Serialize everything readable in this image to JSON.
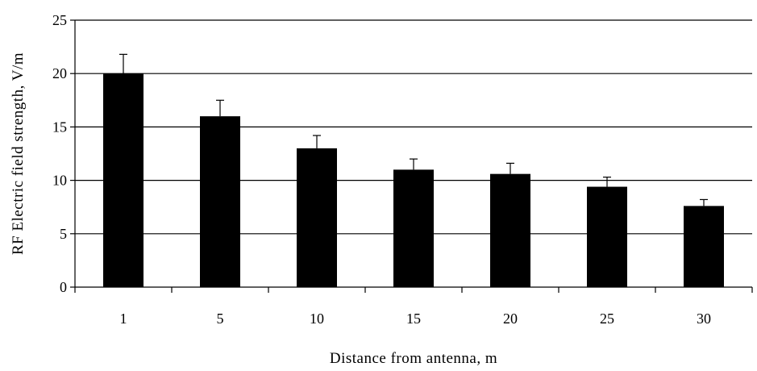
{
  "chart_data": {
    "type": "bar",
    "title": "",
    "xlabel": "Distance  from  antenna,  m",
    "ylabel": "RF Electric  field strength,  V/m",
    "categories": [
      "1",
      "5",
      "10",
      "15",
      "20",
      "25",
      "30"
    ],
    "values": [
      20.0,
      16.0,
      13.0,
      11.0,
      10.6,
      9.4,
      7.6
    ],
    "error_upper": [
      1.8,
      1.5,
      1.2,
      1.0,
      1.0,
      0.9,
      0.6
    ],
    "ylim": [
      0,
      25
    ],
    "yticks": [
      "0",
      "5",
      "10",
      "15",
      "20",
      "25"
    ],
    "grid": "horizontal",
    "bar_color": "#000000",
    "gridline_color": "#000000"
  }
}
